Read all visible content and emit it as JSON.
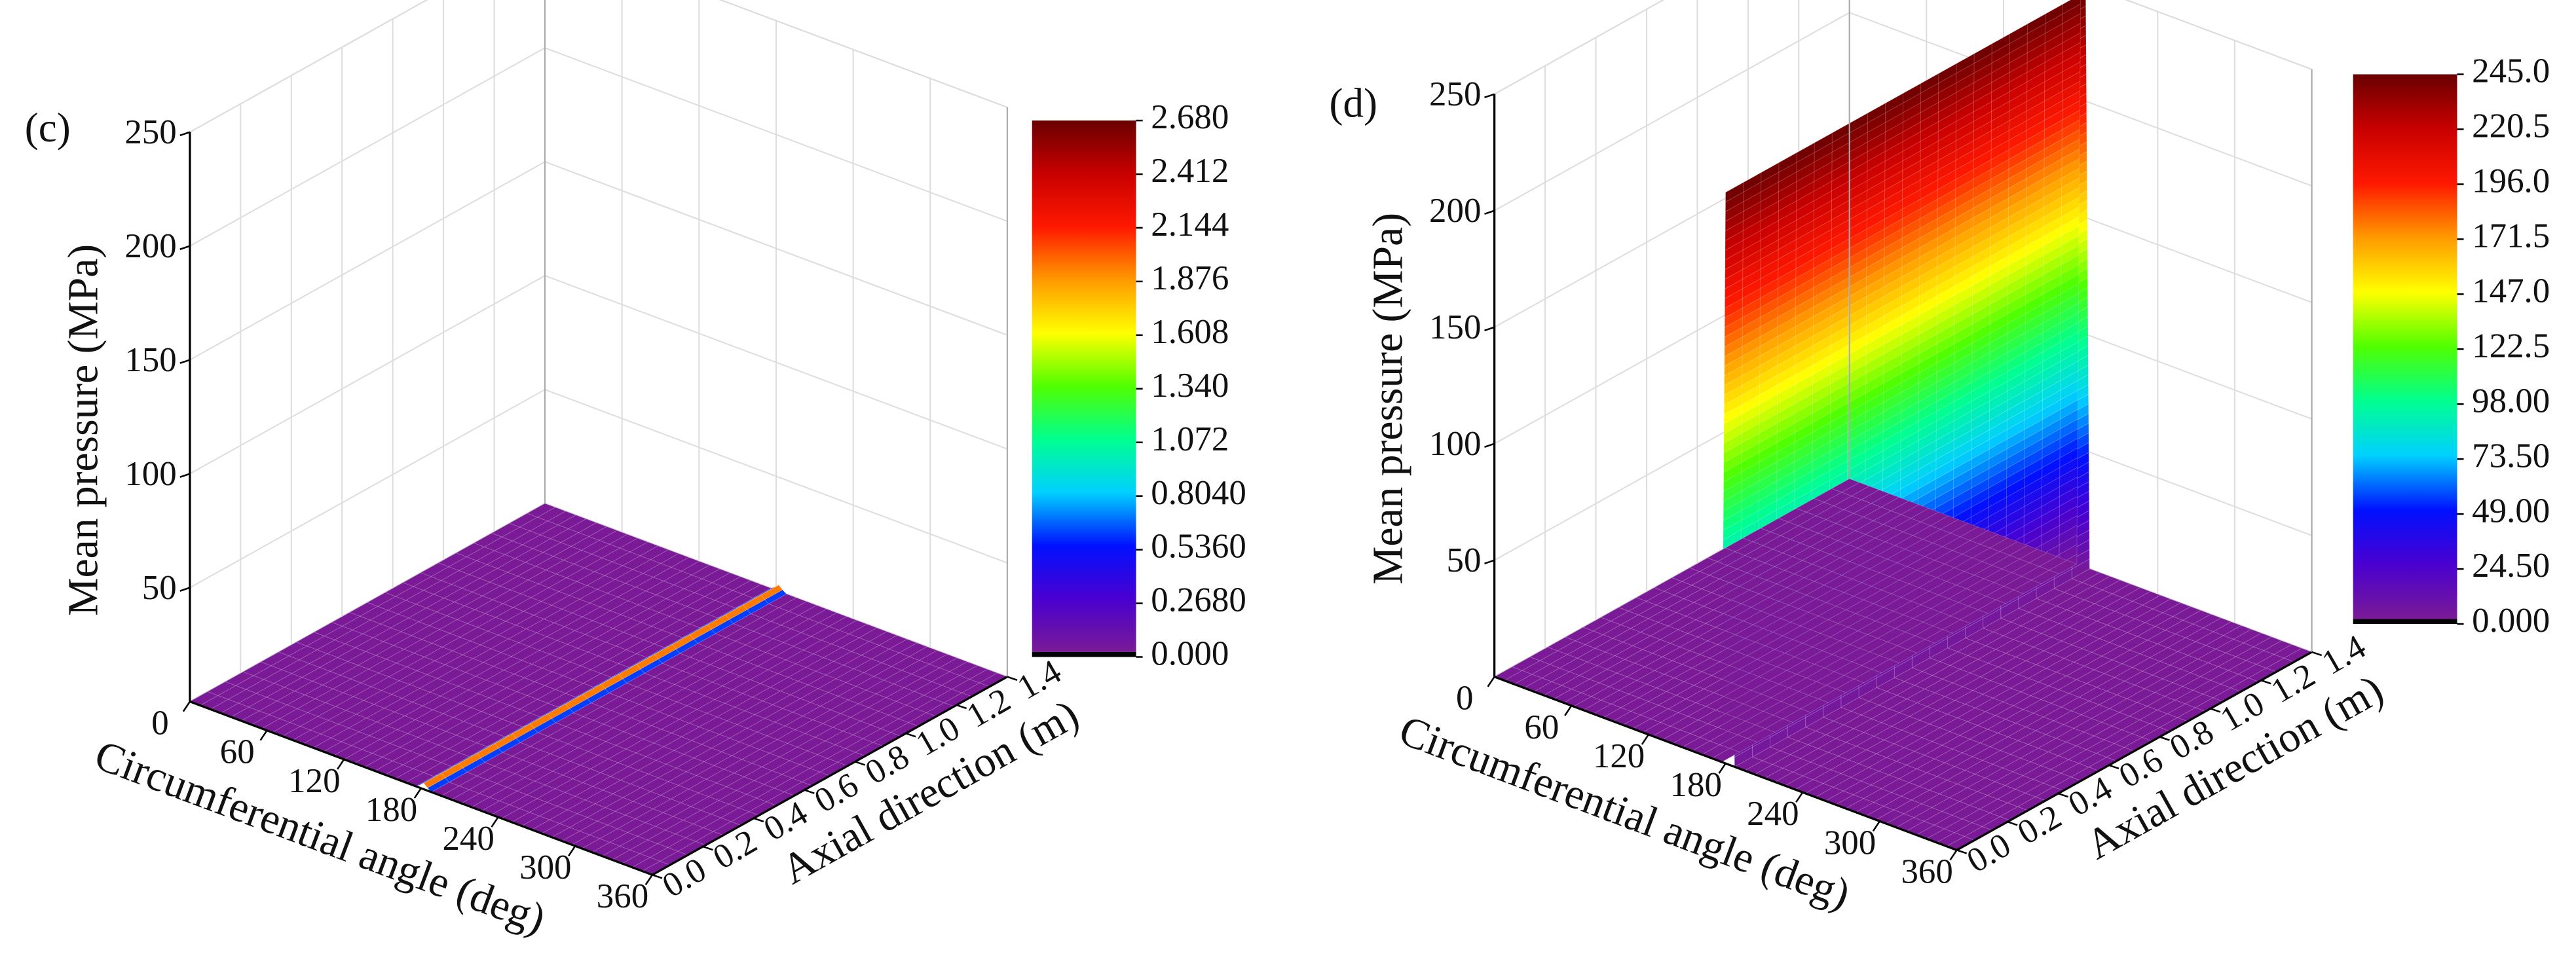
{
  "chart_data": [
    {
      "type": "surface3d",
      "panel_label": "(c)",
      "xlabel": "Circumferential angle (deg)",
      "ylabel": "Axial direction (m)",
      "zlabel": "Mean pressure (MPa)",
      "x": [
        0,
        176,
        179,
        182,
        185,
        188,
        360
      ],
      "values": [
        0,
        0,
        1.2,
        2.68,
        1.2,
        0,
        0
      ],
      "xlim": [
        0,
        360
      ],
      "xticks": [
        0,
        60,
        120,
        180,
        240,
        300,
        360
      ],
      "ylim": [
        0,
        1.4
      ],
      "yticks": [
        {
          "value": 0,
          "label": "0.0"
        },
        0.2,
        0.4,
        0.6,
        0.8,
        {
          "value": 1,
          "label": "1.0"
        },
        1.2,
        1.4
      ],
      "zlim": [
        0,
        250
      ],
      "zticks": [
        50,
        100,
        150,
        200,
        250
      ],
      "clim": [
        0,
        2.68
      ],
      "colorbar_ticks": [
        {
          "value": 0,
          "label": "0.000"
        },
        {
          "value": 0.268,
          "label": "0.2680"
        },
        {
          "value": 0.536,
          "label": "0.5360"
        },
        {
          "value": 0.804,
          "label": "0.8040"
        },
        1.072,
        {
          "value": 1.34,
          "label": "1.340"
        },
        1.608,
        1.876,
        2.144,
        2.412,
        {
          "value": 2.68,
          "label": "2.680"
        }
      ]
    },
    {
      "type": "surface3d",
      "panel_label": "(d)",
      "xlabel": "Circumferential angle (deg)",
      "ylabel": "Axial direction (m)",
      "zlabel": "Mean pressure (MPa)",
      "x": [
        0,
        177,
        180,
        184,
        187,
        360
      ],
      "values": [
        0,
        0,
        245,
        245,
        0,
        0
      ],
      "xlim": [
        0,
        360
      ],
      "xticks": [
        0,
        60,
        120,
        180,
        240,
        300,
        360
      ],
      "ylim": [
        0,
        1.4
      ],
      "yticks": [
        {
          "value": 0,
          "label": "0.0"
        },
        0.2,
        0.4,
        0.6,
        0.8,
        {
          "value": 1,
          "label": "1.0"
        },
        1.2,
        1.4
      ],
      "zlim": [
        0,
        250
      ],
      "zticks": [
        50,
        100,
        150,
        200,
        250
      ],
      "clim": [
        0,
        245
      ],
      "colorbar_ticks": [
        {
          "value": 0,
          "label": "0.000"
        },
        {
          "value": 24.5,
          "label": "24.50"
        },
        {
          "value": 49,
          "label": "49.00"
        },
        {
          "value": 73.5,
          "label": "73.50"
        },
        {
          "value": 98,
          "label": "98.00"
        },
        122.5,
        {
          "value": 147,
          "label": "147.0"
        },
        171.5,
        {
          "value": 196,
          "label": "196.0"
        },
        220.5,
        {
          "value": 245,
          "label": "245.0"
        }
      ]
    }
  ]
}
